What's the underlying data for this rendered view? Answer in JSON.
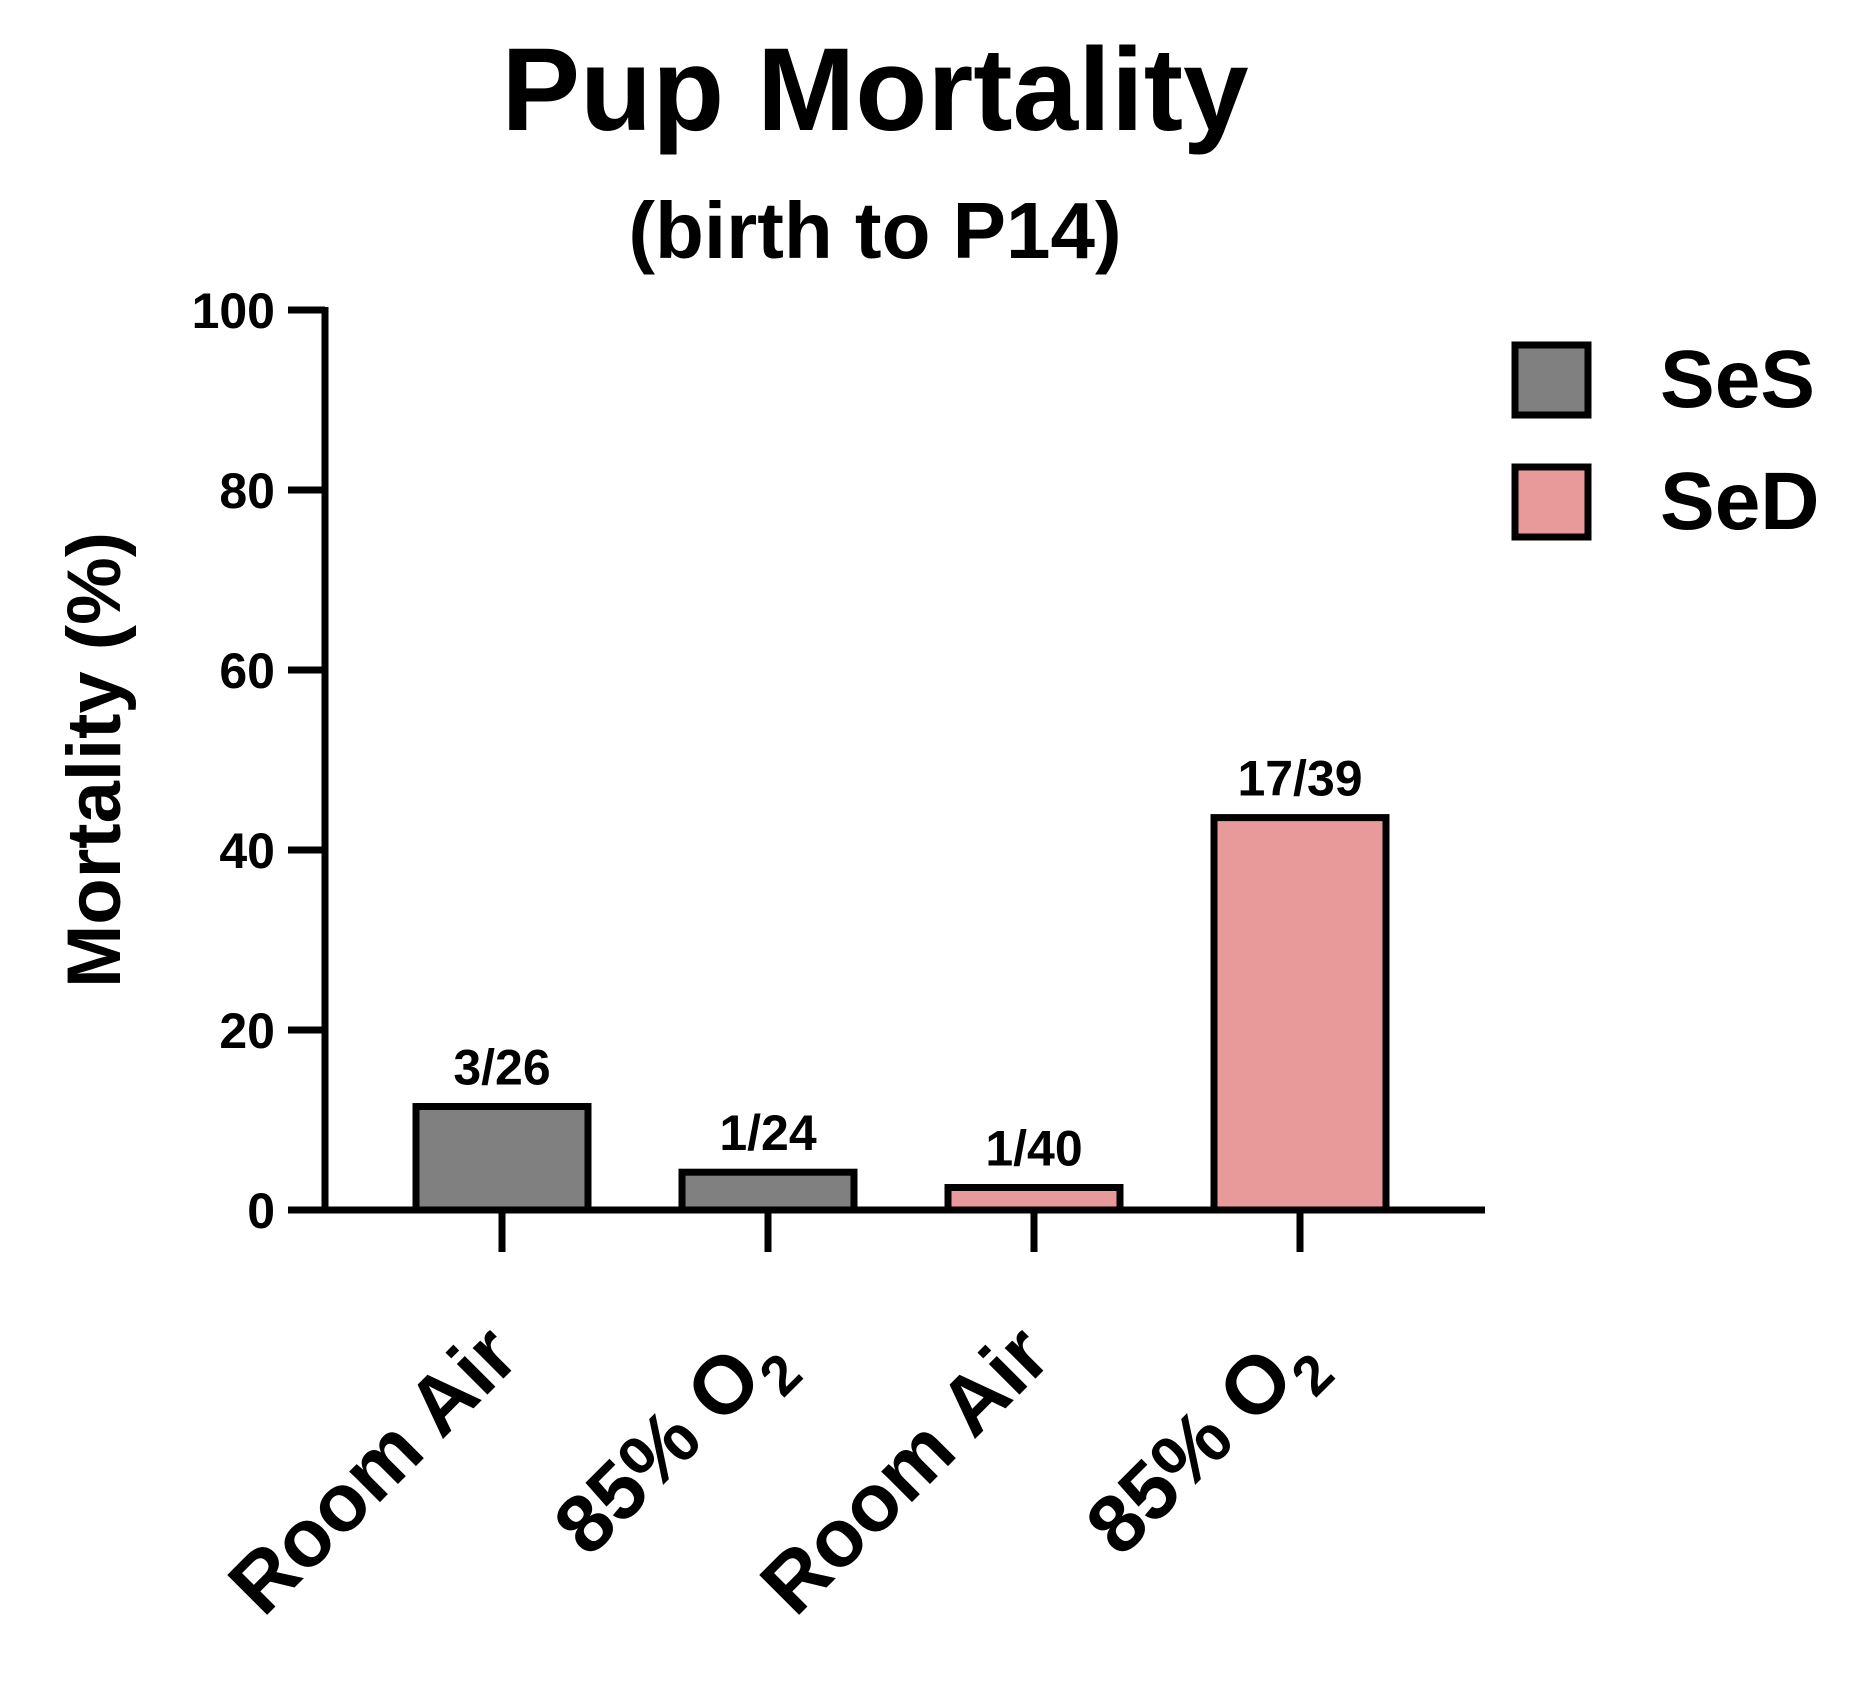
{
  "chart_data": {
    "type": "bar",
    "title": "Pup Mortality",
    "subtitle": "(birth to P14)",
    "ylabel": "Mortality (%)",
    "xlabel": "",
    "ylim": [
      0,
      100
    ],
    "yticks": [
      "0",
      "20",
      "40",
      "60",
      "80",
      "100"
    ],
    "grid": false,
    "legend_position": "top-right",
    "legend": [
      {
        "label": "SeS",
        "color": "#808080"
      },
      {
        "label": "SeD",
        "color": "#e8999a"
      }
    ],
    "categories": [
      {
        "main": "Room Air",
        "sub": ""
      },
      {
        "main": "85% O",
        "sub": "2"
      },
      {
        "main": "Room Air",
        "sub": ""
      },
      {
        "main": "85% O",
        "sub": "2"
      }
    ],
    "values": [
      11.5,
      4.2,
      2.5,
      43.6
    ],
    "bar_series": [
      "SeS",
      "SeS",
      "SeD",
      "SeD"
    ],
    "bar_colors": [
      "#808080",
      "#808080",
      "#e8999a",
      "#e8999a"
    ],
    "data_labels": [
      "3/26",
      "1/24",
      "1/40",
      "17/39"
    ]
  }
}
